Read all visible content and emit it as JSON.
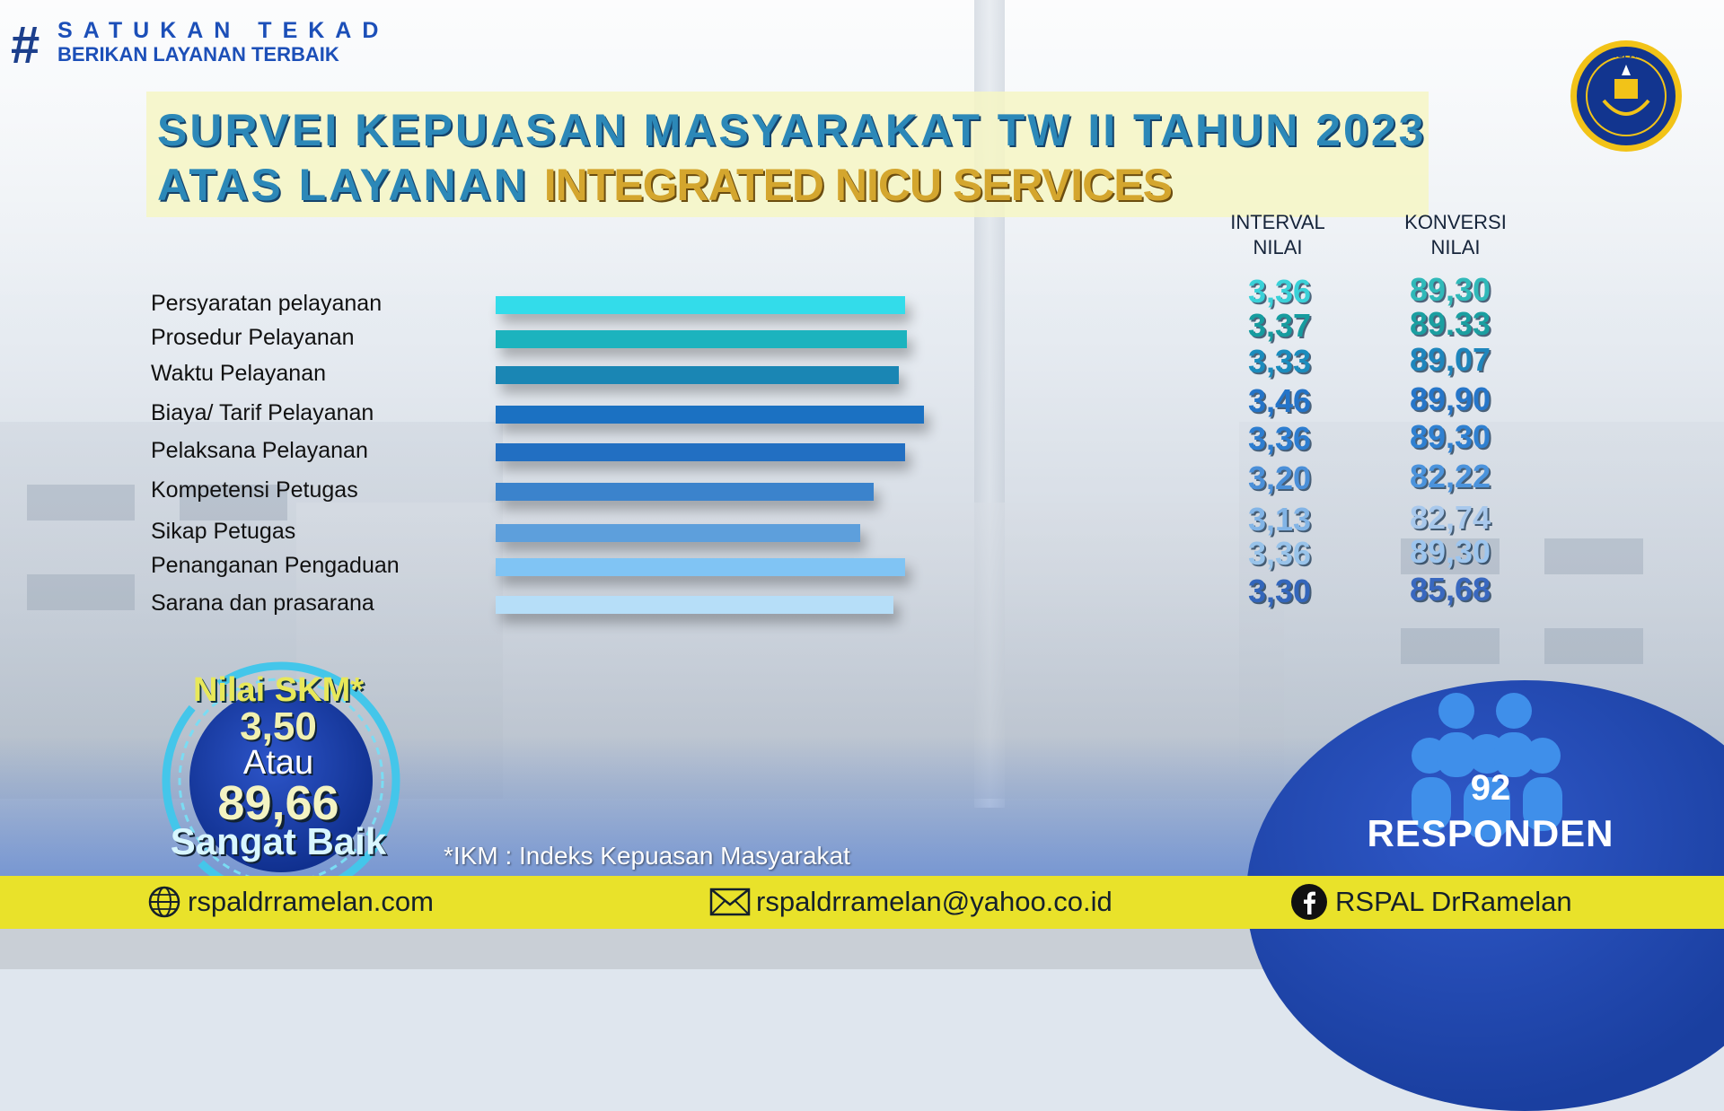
{
  "header": {
    "hash": "#",
    "slogan_line1": "SATUKAN TEKAD",
    "slogan_line2": "BERIKAN LAYANAN TERBAIK"
  },
  "logo": {
    "icon": "rspal-emblem-icon",
    "text": "RSPAL"
  },
  "title": {
    "line1": "SURVEI KEPUASAN MASYARAKAT TW II TAHUN 2023",
    "line2_prefix": "ATAS LAYANAN ",
    "line2_highlight": "INTEGRATED NICU SERVICES"
  },
  "columns": {
    "interval_line1": "INTERVAL",
    "interval_line2": "NILAI",
    "konversi_line1": "KONVERSI",
    "konversi_line2": "NILAI"
  },
  "chart_data": {
    "type": "bar",
    "orientation": "horizontal",
    "categories": [
      "Persyaratan pelayanan",
      "Prosedur Pelayanan",
      "Waktu Pelayanan",
      "Biaya/ Tarif Pelayanan",
      "Pelaksana Pelayanan",
      "Kompetensi Petugas",
      "Sikap Petugas",
      "Penanganan Pengaduan",
      "Sarana dan prasarana"
    ],
    "series": [
      {
        "name": "INTERVAL NILAI",
        "values": [
          3.36,
          3.37,
          3.33,
          3.46,
          3.36,
          3.2,
          3.13,
          3.36,
          3.3
        ],
        "labels": [
          "3,36",
          "3,37",
          "3,33",
          "3,46",
          "3,36",
          "3,20",
          "3,13",
          "3,36",
          "3,30"
        ]
      },
      {
        "name": "KONVERSI NILAI",
        "values": [
          89.3,
          89.33,
          89.07,
          89.9,
          89.3,
          82.22,
          82.74,
          89.3,
          85.68
        ],
        "labels": [
          "89,30",
          "89.33",
          "89,07",
          "89,90",
          "89,30",
          "82,22",
          "82,74",
          "89,30",
          "85,68"
        ]
      }
    ],
    "bar_colors": [
      "#33dcea",
      "#1cb3be",
      "#1a86b4",
      "#1b71c2",
      "#226fc2",
      "#3b83cc",
      "#5d9fdc",
      "#80c4f4",
      "#b6def8"
    ],
    "interval_colors": [
      "#3ad1d8",
      "#169c9f",
      "#1b8cbd",
      "#2474c8",
      "#2d7dd0",
      "#4a8fd8",
      "#82b4e6",
      "#98c3ea",
      "#3366bb"
    ],
    "konversi_colors": [
      "#30b9b9",
      "#1b9fa1",
      "#1e86bd",
      "#2676c9",
      "#2f80d1",
      "#4b93dc",
      "#a8c8ec",
      "#9dc5ee",
      "#3968bf"
    ],
    "xlim": [
      0,
      4
    ]
  },
  "skm": {
    "title": "Nilai SKM*",
    "score": "3,50",
    "or_text": "Atau",
    "converted": "89,66",
    "grade": "Sangat Baik"
  },
  "footnote": "*IKM : Indeks Kepuasan Masyarakat",
  "respondents": {
    "count": "92",
    "label": "RESPONDEN",
    "icon": "people-group-icon"
  },
  "footer": {
    "website": "rspaldrramelan.com",
    "website_icon": "globe-icon",
    "email": "rspaldrramelan@yahoo.co.id",
    "email_icon": "envelope-icon",
    "facebook": "RSPAL DrRamelan",
    "facebook_icon": "facebook-icon",
    "bar_color": "#e9e22a"
  }
}
